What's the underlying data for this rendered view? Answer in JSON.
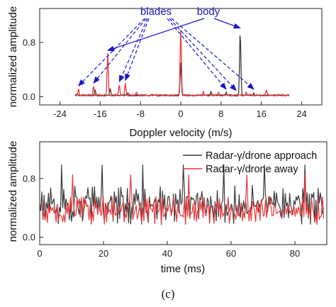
{
  "figure": {
    "panel_label": "(c)"
  },
  "chart_data": [
    {
      "type": "line",
      "xlabel": "Doppler velocity (m/s)",
      "ylabel": "normalized amplitude",
      "xlim": [
        -28,
        28
      ],
      "ylim": [
        -0.12,
        1.3
      ],
      "xticks": [
        -24,
        -16,
        -8,
        0,
        8,
        16,
        24
      ],
      "yticks": [
        0.0,
        0.8
      ],
      "xtick_labels": [
        "-24",
        "-16",
        "-8",
        "0",
        "8",
        "16",
        "24"
      ],
      "ytick_labels": [
        "0.0",
        "0.8"
      ],
      "grid": false,
      "series": [
        {
          "color": "#3a3a3a",
          "x_range": [
            -21,
            21.5
          ],
          "noise_level": 0.02,
          "peaks": [
            [
              -20.5,
              0.05
            ],
            [
              -17,
              0.1
            ],
            [
              -14,
              0.12
            ],
            [
              -10.5,
              0.06
            ],
            [
              -5,
              0.03
            ],
            [
              0,
              0.5
            ],
            [
              6,
              0.08
            ],
            [
              9,
              0.07
            ],
            [
              11.8,
              0.97
            ],
            [
              14.5,
              0.06
            ]
          ]
        },
        {
          "color": "#e8383c",
          "x_range": [
            -21,
            21.5
          ],
          "noise_level": 0.025,
          "peaks": [
            [
              -20.3,
              0.12
            ],
            [
              -17.3,
              0.16
            ],
            [
              -14.5,
              0.64
            ],
            [
              -12.2,
              0.18
            ],
            [
              -11.0,
              0.2
            ],
            [
              -8.8,
              0.07
            ],
            [
              0,
              0.98
            ],
            [
              4.5,
              0.08
            ],
            [
              7.5,
              0.07
            ],
            [
              13.0,
              0.07
            ],
            [
              17.0,
              0.1
            ]
          ]
        }
      ],
      "annotations": [
        {
          "text": "blades",
          "color": "#1515c8",
          "style": "dashed",
          "targets": [
            [
              -20.3,
              0.12
            ],
            [
              -17.3,
              0.16
            ],
            [
              -12.2,
              0.18
            ],
            [
              -11.0,
              0.2
            ],
            [
              9.0,
              0.07
            ],
            [
              11.0,
              0.05
            ],
            [
              14.5,
              0.07
            ]
          ]
        },
        {
          "text": "body",
          "color": "#1515c8",
          "style": "solid",
          "targets": [
            [
              -14.5,
              0.64
            ],
            [
              11.8,
              0.97
            ]
          ]
        }
      ]
    },
    {
      "type": "line",
      "xlabel": "time (ms)",
      "ylabel": "normalized amplitude",
      "xlim": [
        0,
        90
      ],
      "ylim": [
        -0.1,
        1.3
      ],
      "xticks": [
        0,
        20,
        40,
        60,
        80
      ],
      "yticks": [
        0.0,
        0.8
      ],
      "xtick_labels": [
        "0",
        "20",
        "40",
        "60",
        "80"
      ],
      "ytick_labels": [
        "0.0",
        "0.8"
      ],
      "grid": false,
      "legend_position": "top-right",
      "series": [
        {
          "name": "Radar-γ/drone approach",
          "color": "#3a3a3a",
          "x_range": [
            0,
            89
          ],
          "samples": 260,
          "level_range": [
            0.0,
            0.88
          ]
        },
        {
          "name": "Radar-γ/drone away",
          "color": "#e8383c",
          "x_range": [
            0,
            89
          ],
          "samples": 260,
          "level_range": [
            0.05,
            0.68
          ]
        }
      ]
    }
  ]
}
